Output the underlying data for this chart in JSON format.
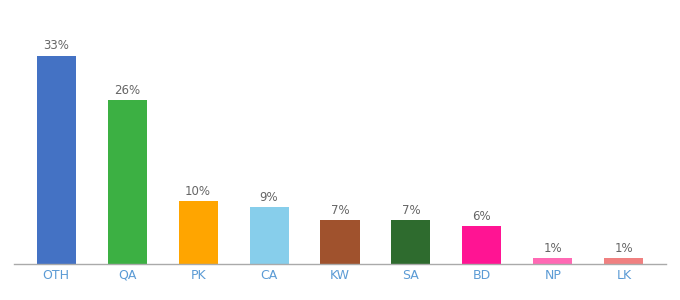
{
  "categories": [
    "OTH",
    "QA",
    "PK",
    "CA",
    "KW",
    "SA",
    "BD",
    "NP",
    "LK"
  ],
  "values": [
    33,
    26,
    10,
    9,
    7,
    7,
    6,
    1,
    1
  ],
  "bar_colors": [
    "#4472C4",
    "#3CB043",
    "#FFA500",
    "#87CEEB",
    "#A0522D",
    "#2E6B2E",
    "#FF1493",
    "#FF69B4",
    "#F08080"
  ],
  "label_fontsize": 8.5,
  "tick_fontsize": 9,
  "tick_color": "#5B9BD5",
  "ylim": [
    0,
    38
  ],
  "bar_width": 0.55,
  "background_color": "#ffffff",
  "label_color": "#666666"
}
